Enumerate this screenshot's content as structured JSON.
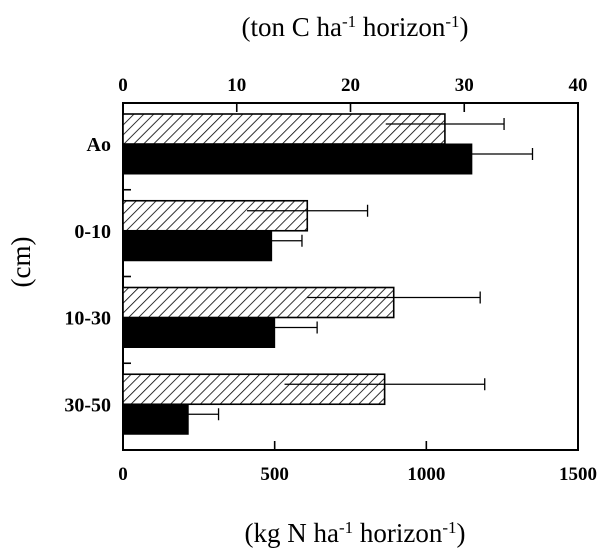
{
  "chart_data": {
    "type": "bar",
    "orientation": "horizontal",
    "categories": [
      "Ao",
      "0-10",
      "10-30",
      "30-50"
    ],
    "series": [
      {
        "values": [
          28.3,
          16.2,
          23.8,
          23.0
        ],
        "axis": "top",
        "pattern": "hatched"
      },
      {
        "values": [
          1150,
          490,
          500,
          215
        ],
        "axis": "bottom",
        "pattern": "solid"
      }
    ],
    "errors": [
      [
        5.2,
        5.3,
        7.6,
        8.8
      ],
      [
        200,
        100,
        140,
        100
      ]
    ],
    "top_axis": {
      "label_main": "(ton C ha",
      "sup1": "-1",
      "label_mid": " horizon",
      "sup2": "-1",
      "label_end": ")",
      "ticks": [
        "0",
        "10",
        "20",
        "30",
        "40"
      ],
      "range": [
        0,
        40
      ]
    },
    "bottom_axis": {
      "label_main": "(kg N ha",
      "sup1": "-1",
      "label_mid": " horizon",
      "sup2": "-1",
      "label_end": ")",
      "ticks": [
        "0",
        "500",
        "1000",
        "1500"
      ],
      "range": [
        0,
        1500
      ]
    },
    "ylabel": "(cm)",
    "grid": false,
    "legend": "none",
    "colors": {
      "solid": "#000000",
      "hatch": "#000000",
      "background": "#ffffff"
    }
  }
}
